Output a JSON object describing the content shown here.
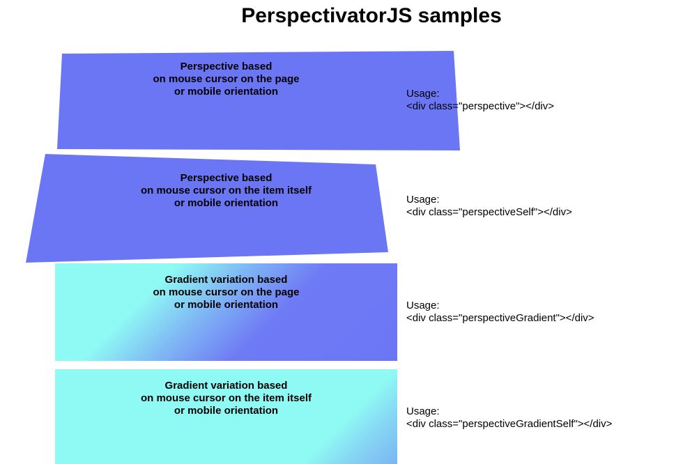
{
  "page": {
    "title": "PerspectivatorJS samples"
  },
  "colors": {
    "box_blue": "#6b76f5",
    "gradient_cyan": "#8ffaf3"
  },
  "samples": [
    {
      "lines": [
        "Perspective based",
        "on mouse cursor on the page",
        "or mobile orientation"
      ],
      "usage_label": "Usage:",
      "usage_code": "<div class=\"perspective\"></div>"
    },
    {
      "lines": [
        "Perspective based",
        "on mouse cursor on the item itself",
        "or mobile orientation"
      ],
      "usage_label": "Usage:",
      "usage_code": "<div class=\"perspectiveSelf\"></div>"
    },
    {
      "lines": [
        "Gradient variation based",
        "on mouse cursor on the page",
        "or mobile orientation"
      ],
      "usage_label": "Usage:",
      "usage_code": "<div class=\"perspectiveGradient\"></div>"
    },
    {
      "lines": [
        "Gradient variation based",
        "on mouse cursor on the item itself",
        "or mobile orientation"
      ],
      "usage_label": "Usage:",
      "usage_code": "<div class=\"perspectiveGradientSelf\"></div>"
    }
  ]
}
